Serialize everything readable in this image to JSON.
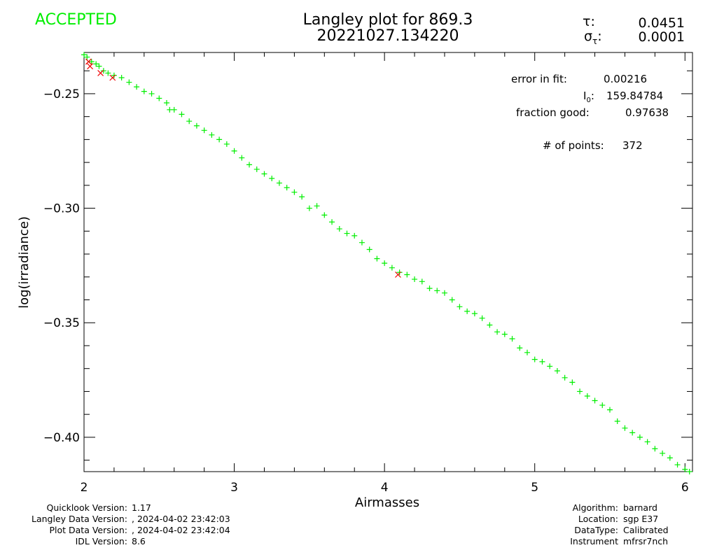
{
  "status": "ACCEPTED",
  "title_line1": "Langley plot for 869.3",
  "title_line2": "20221027.134220",
  "tau": {
    "label": "τ:",
    "value": "0.0451"
  },
  "sigma_tau": {
    "label": "σ",
    "sub": "τ",
    "colon": ":",
    "value": "0.0001"
  },
  "fit_stats": {
    "error_in_fit": {
      "label": "error in fit:",
      "value": "0.00216"
    },
    "i0": {
      "label": "I",
      "sub": "0",
      "colon": ":",
      "value": "159.84784"
    },
    "fraction_good": {
      "label": "fraction good:",
      "value": "0.97638"
    },
    "num_points": {
      "label": "# of points:",
      "value": "372"
    }
  },
  "footer_left": [
    {
      "label": "Quicklook Version:",
      "value": "1.17"
    },
    {
      "label": "Langley Data Version:",
      "value": ", 2024-04-02 23:42:03"
    },
    {
      "label": "Plot Data Version:",
      "value": ", 2024-04-02 23:42:04"
    },
    {
      "label": "IDL Version:",
      "value": "8.6"
    }
  ],
  "footer_right": [
    {
      "label": "Algorithm:",
      "value": "barnard"
    },
    {
      "label": "Location:",
      "value": "sgp E37"
    },
    {
      "label": "DataType:",
      "value": "Calibrated"
    },
    {
      "label": "Instrument",
      "value": "mfrsr7nch"
    }
  ],
  "colors": {
    "accepted_points": "#00ee00",
    "rejected_points": "#ee0000",
    "status": "#00ee00"
  },
  "chart_data": {
    "type": "scatter",
    "xlabel": "Airmasses",
    "ylabel": "log(irradiance)",
    "xlim": [
      2.0,
      6.05
    ],
    "ylim": [
      -0.415,
      -0.232
    ],
    "x_ticks": [
      2,
      3,
      4,
      5,
      6
    ],
    "y_ticks": [
      -0.25,
      -0.3,
      -0.35,
      -0.4
    ],
    "y_tick_labels": [
      "−0.25",
      "−0.30",
      "−0.35",
      "−0.40"
    ],
    "series": [
      {
        "marker": "plus",
        "color": "#00ee00",
        "points": [
          [
            2.0,
            -0.233
          ],
          [
            2.02,
            -0.234
          ],
          [
            2.05,
            -0.236
          ],
          [
            2.08,
            -0.237
          ],
          [
            2.1,
            -0.238
          ],
          [
            2.13,
            -0.24
          ],
          [
            2.16,
            -0.241
          ],
          [
            2.2,
            -0.242
          ],
          [
            2.25,
            -0.243
          ],
          [
            2.3,
            -0.245
          ],
          [
            2.35,
            -0.247
          ],
          [
            2.4,
            -0.249
          ],
          [
            2.45,
            -0.25
          ],
          [
            2.5,
            -0.252
          ],
          [
            2.55,
            -0.254
          ],
          [
            2.57,
            -0.257
          ],
          [
            2.6,
            -0.257
          ],
          [
            2.65,
            -0.259
          ],
          [
            2.7,
            -0.262
          ],
          [
            2.75,
            -0.264
          ],
          [
            2.8,
            -0.266
          ],
          [
            2.85,
            -0.268
          ],
          [
            2.9,
            -0.27
          ],
          [
            2.95,
            -0.272
          ],
          [
            3.0,
            -0.275
          ],
          [
            3.05,
            -0.278
          ],
          [
            3.1,
            -0.281
          ],
          [
            3.15,
            -0.283
          ],
          [
            3.2,
            -0.285
          ],
          [
            3.25,
            -0.287
          ],
          [
            3.3,
            -0.289
          ],
          [
            3.35,
            -0.291
          ],
          [
            3.4,
            -0.293
          ],
          [
            3.45,
            -0.295
          ],
          [
            3.5,
            -0.3
          ],
          [
            3.55,
            -0.299
          ],
          [
            3.6,
            -0.303
          ],
          [
            3.65,
            -0.306
          ],
          [
            3.7,
            -0.309
          ],
          [
            3.75,
            -0.311
          ],
          [
            3.8,
            -0.312
          ],
          [
            3.85,
            -0.315
          ],
          [
            3.9,
            -0.318
          ],
          [
            3.95,
            -0.322
          ],
          [
            4.0,
            -0.324
          ],
          [
            4.05,
            -0.326
          ],
          [
            4.1,
            -0.328
          ],
          [
            4.15,
            -0.329
          ],
          [
            4.2,
            -0.331
          ],
          [
            4.25,
            -0.332
          ],
          [
            4.3,
            -0.335
          ],
          [
            4.35,
            -0.336
          ],
          [
            4.4,
            -0.337
          ],
          [
            4.45,
            -0.34
          ],
          [
            4.5,
            -0.343
          ],
          [
            4.55,
            -0.345
          ],
          [
            4.6,
            -0.346
          ],
          [
            4.65,
            -0.348
          ],
          [
            4.7,
            -0.351
          ],
          [
            4.75,
            -0.354
          ],
          [
            4.8,
            -0.355
          ],
          [
            4.85,
            -0.357
          ],
          [
            4.9,
            -0.361
          ],
          [
            4.95,
            -0.363
          ],
          [
            5.0,
            -0.366
          ],
          [
            5.05,
            -0.367
          ],
          [
            5.1,
            -0.369
          ],
          [
            5.15,
            -0.371
          ],
          [
            5.2,
            -0.374
          ],
          [
            5.25,
            -0.376
          ],
          [
            5.3,
            -0.38
          ],
          [
            5.35,
            -0.382
          ],
          [
            5.4,
            -0.384
          ],
          [
            5.45,
            -0.386
          ],
          [
            5.5,
            -0.388
          ],
          [
            5.55,
            -0.393
          ],
          [
            5.6,
            -0.396
          ],
          [
            5.65,
            -0.398
          ],
          [
            5.7,
            -0.4
          ],
          [
            5.75,
            -0.402
          ],
          [
            5.8,
            -0.405
          ],
          [
            5.85,
            -0.407
          ],
          [
            5.9,
            -0.409
          ],
          [
            5.95,
            -0.412
          ],
          [
            6.0,
            -0.414
          ],
          [
            6.03,
            -0.415
          ]
        ]
      },
      {
        "marker": "x",
        "color": "#ee0000",
        "points": [
          [
            2.03,
            -0.236
          ],
          [
            2.04,
            -0.238
          ],
          [
            2.11,
            -0.241
          ],
          [
            2.19,
            -0.243
          ],
          [
            4.09,
            -0.329
          ]
        ]
      }
    ]
  }
}
